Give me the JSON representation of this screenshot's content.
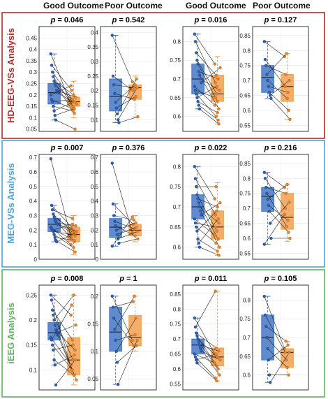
{
  "headers": [
    "Good Outcome",
    "Poor Outcome",
    "Good Outcome",
    "Poor Outcome"
  ],
  "colors": {
    "good": "#4477c6",
    "poor": "#f0a050",
    "row_hd": "#b52b2b",
    "row_meg": "#4aa3d9",
    "row_ieeg": "#5fb35f",
    "pair_line": "#222222"
  },
  "rows": [
    {
      "label": "HD-EEG-VSs Analysis",
      "color_key": "row_hd"
    },
    {
      "label": "MEG-VSs Analysis",
      "color_key": "row_meg"
    },
    {
      "label": "iEEG Analysis",
      "color_key": "row_ieeg"
    }
  ],
  "chart_data": [
    {
      "type": "box",
      "row": 0,
      "col": 0,
      "p_label": "p",
      "p_value": "= 0.046",
      "ylim": [
        0.04,
        0.5
      ],
      "yticks": [
        "0.45",
        "0.4",
        "0.35",
        "0.3",
        "0.25",
        "0.2",
        "0.15",
        "0.1",
        "0.05"
      ],
      "yvals": [
        0.45,
        0.4,
        0.35,
        0.3,
        0.25,
        0.2,
        0.15,
        0.1,
        0.05
      ],
      "boxes": [
        {
          "q1": 0.16,
          "median": 0.21,
          "q3": 0.25,
          "lo": 0.09,
          "hi": 0.38
        },
        {
          "q1": 0.15,
          "median": 0.17,
          "q3": 0.19,
          "lo": 0.1,
          "hi": 0.26
        }
      ],
      "pairs": [
        [
          0.38,
          0.16
        ],
        [
          0.33,
          0.22
        ],
        [
          0.3,
          0.18
        ],
        [
          0.28,
          0.15
        ],
        [
          0.26,
          0.2
        ],
        [
          0.25,
          0.12
        ],
        [
          0.24,
          0.17
        ],
        [
          0.22,
          0.19
        ],
        [
          0.21,
          0.16
        ],
        [
          0.2,
          0.24
        ],
        [
          0.18,
          0.14
        ],
        [
          0.17,
          0.18
        ],
        [
          0.15,
          0.13
        ],
        [
          0.13,
          0.17
        ],
        [
          0.11,
          0.14
        ],
        [
          0.09,
          0.05
        ]
      ]
    },
    {
      "type": "box",
      "row": 0,
      "col": 1,
      "p_label": "p",
      "p_value": "= 0.542",
      "ylim": [
        0.06,
        0.42
      ],
      "yticks": [
        "0.4",
        "0.35",
        "0.3",
        "0.25",
        "0.2",
        "0.15",
        "0.1"
      ],
      "yvals": [
        0.4,
        0.35,
        0.3,
        0.25,
        0.2,
        0.15,
        0.1
      ],
      "boxes": [
        {
          "q1": 0.13,
          "median": 0.18,
          "q3": 0.24,
          "lo": 0.09,
          "hi": 0.39
        },
        {
          "q1": 0.17,
          "median": 0.21,
          "q3": 0.22,
          "lo": 0.11,
          "hi": 0.25
        }
      ],
      "pairs": [
        [
          0.39,
          0.23
        ],
        [
          0.25,
          0.2
        ],
        [
          0.22,
          0.21
        ],
        [
          0.19,
          0.17
        ],
        [
          0.16,
          0.22
        ],
        [
          0.14,
          0.18
        ],
        [
          0.12,
          0.24
        ],
        [
          0.1,
          0.21
        ],
        [
          0.09,
          0.11
        ]
      ]
    },
    {
      "type": "box",
      "row": 0,
      "col": 2,
      "p_label": "p",
      "p_value": "= 0.016",
      "ylim": [
        0.56,
        0.84
      ],
      "yticks": [
        "0.8",
        "0.75",
        "0.7",
        "0.65",
        "0.6"
      ],
      "yvals": [
        0.8,
        0.75,
        0.7,
        0.65,
        0.6
      ],
      "boxes": [
        {
          "q1": 0.66,
          "median": 0.7,
          "q3": 0.74,
          "lo": 0.62,
          "hi": 0.82
        },
        {
          "q1": 0.64,
          "median": 0.66,
          "q3": 0.71,
          "lo": 0.58,
          "hi": 0.76
        }
      ],
      "pairs": [
        [
          0.82,
          0.74
        ],
        [
          0.8,
          0.69
        ],
        [
          0.77,
          0.71
        ],
        [
          0.75,
          0.66
        ],
        [
          0.74,
          0.64
        ],
        [
          0.72,
          0.7
        ],
        [
          0.71,
          0.62
        ],
        [
          0.7,
          0.67
        ],
        [
          0.69,
          0.73
        ],
        [
          0.68,
          0.63
        ],
        [
          0.67,
          0.65
        ],
        [
          0.66,
          0.6
        ],
        [
          0.65,
          0.68
        ],
        [
          0.64,
          0.61
        ],
        [
          0.63,
          0.59
        ],
        [
          0.62,
          0.58
        ]
      ]
    },
    {
      "type": "box",
      "row": 0,
      "col": 3,
      "p_label": "p",
      "p_value": "= 0.127",
      "ylim": [
        0.53,
        0.88
      ],
      "yticks": [
        "0.85",
        "0.8",
        "0.75",
        "0.7",
        "0.65",
        "0.6",
        "0.55"
      ],
      "yvals": [
        0.85,
        0.8,
        0.75,
        0.7,
        0.65,
        0.6,
        0.55
      ],
      "boxes": [
        {
          "q1": 0.66,
          "median": 0.71,
          "q3": 0.75,
          "lo": 0.64,
          "hi": 0.83
        },
        {
          "q1": 0.63,
          "median": 0.68,
          "q3": 0.72,
          "lo": 0.57,
          "hi": 0.79
        }
      ],
      "pairs": [
        [
          0.83,
          0.78
        ],
        [
          0.77,
          0.68
        ],
        [
          0.75,
          0.72
        ],
        [
          0.72,
          0.79
        ],
        [
          0.7,
          0.64
        ],
        [
          0.68,
          0.66
        ],
        [
          0.66,
          0.6
        ],
        [
          0.65,
          0.7
        ],
        [
          0.64,
          0.57
        ]
      ]
    },
    {
      "type": "box",
      "row": 1,
      "col": 0,
      "p_label": "p",
      "p_value": "= 0.007",
      "ylim": [
        0,
        0.72
      ],
      "yticks": [
        "0.7",
        "0.6",
        "0.5",
        "0.4",
        "0.3",
        "0.2",
        "0.1",
        "0"
      ],
      "yvals": [
        0.7,
        0.6,
        0.5,
        0.4,
        0.3,
        0.2,
        0.1,
        0
      ],
      "boxes": [
        {
          "q1": 0.19,
          "median": 0.24,
          "q3": 0.28,
          "lo": 0.12,
          "hi": 0.37
        },
        {
          "q1": 0.12,
          "median": 0.17,
          "q3": 0.22,
          "lo": 0.03,
          "hi": 0.3
        }
      ],
      "pairs": [
        [
          0.69,
          0.15
        ],
        [
          0.37,
          0.22
        ],
        [
          0.34,
          0.28
        ],
        [
          0.31,
          0.18
        ],
        [
          0.29,
          0.2
        ],
        [
          0.27,
          0.12
        ],
        [
          0.26,
          0.16
        ],
        [
          0.25,
          0.23
        ],
        [
          0.24,
          0.19
        ],
        [
          0.22,
          0.1
        ],
        [
          0.21,
          0.14
        ],
        [
          0.2,
          0.24
        ],
        [
          0.19,
          0.17
        ],
        [
          0.17,
          0.08
        ],
        [
          0.15,
          0.13
        ],
        [
          0.13,
          0.05
        ],
        [
          0.12,
          0.18
        ]
      ]
    },
    {
      "type": "box",
      "row": 1,
      "col": 1,
      "p_label": "p",
      "p_value": "= 0.376",
      "ylim": [
        0,
        0.72
      ],
      "yticks": [
        "0.7",
        "0.6",
        "0.5",
        "0.4",
        "0.3",
        "0.2",
        "0.1",
        "0"
      ],
      "yvals": [
        0.7,
        0.6,
        0.5,
        0.4,
        0.3,
        0.2,
        0.1,
        0
      ],
      "boxes": [
        {
          "q1": 0.15,
          "median": 0.22,
          "q3": 0.28,
          "lo": 0.09,
          "hi": 0.38
        },
        {
          "q1": 0.16,
          "median": 0.2,
          "q3": 0.24,
          "lo": 0.12,
          "hi": 0.3
        }
      ],
      "pairs": [
        [
          0.66,
          0.18
        ],
        [
          0.38,
          0.24
        ],
        [
          0.3,
          0.27
        ],
        [
          0.26,
          0.21
        ],
        [
          0.23,
          0.16
        ],
        [
          0.2,
          0.25
        ],
        [
          0.17,
          0.22
        ],
        [
          0.14,
          0.19
        ],
        [
          0.11,
          0.14
        ],
        [
          0.09,
          0.29
        ]
      ]
    },
    {
      "type": "box",
      "row": 1,
      "col": 2,
      "p_label": "p",
      "p_value": "= 0.022",
      "ylim": [
        0.57,
        0.83
      ],
      "yticks": [
        "0.8",
        "0.75",
        "0.7",
        "0.65",
        "0.6"
      ],
      "yvals": [
        0.8,
        0.75,
        0.7,
        0.65,
        0.6
      ],
      "boxes": [
        {
          "q1": 0.67,
          "median": 0.7,
          "q3": 0.73,
          "lo": 0.6,
          "hi": 0.8
        },
        {
          "q1": 0.62,
          "median": 0.65,
          "q3": 0.69,
          "lo": 0.58,
          "hi": 0.76
        }
      ],
      "pairs": [
        [
          0.8,
          0.72
        ],
        [
          0.77,
          0.68
        ],
        [
          0.75,
          0.75
        ],
        [
          0.73,
          0.64
        ],
        [
          0.72,
          0.7
        ],
        [
          0.71,
          0.62
        ],
        [
          0.7,
          0.66
        ],
        [
          0.69,
          0.6
        ],
        [
          0.68,
          0.71
        ],
        [
          0.67,
          0.63
        ],
        [
          0.66,
          0.65
        ],
        [
          0.65,
          0.61
        ],
        [
          0.64,
          0.69
        ],
        [
          0.62,
          0.59
        ],
        [
          0.61,
          0.67
        ],
        [
          0.6,
          0.58
        ]
      ]
    },
    {
      "type": "box",
      "row": 1,
      "col": 3,
      "p_label": "p",
      "p_value": "= 0.216",
      "ylim": [
        0.53,
        0.88
      ],
      "yticks": [
        "0.85",
        "0.8",
        "0.75",
        "0.7",
        "0.65",
        "0.6",
        "0.55"
      ],
      "yvals": [
        0.85,
        0.8,
        0.75,
        0.7,
        0.65,
        0.6,
        0.55
      ],
      "boxes": [
        {
          "q1": 0.69,
          "median": 0.74,
          "q3": 0.77,
          "lo": 0.58,
          "hi": 0.82
        },
        {
          "q1": 0.63,
          "median": 0.67,
          "q3": 0.75,
          "lo": 0.59,
          "hi": 0.78
        }
      ],
      "pairs": [
        [
          0.82,
          0.77
        ],
        [
          0.8,
          0.7
        ],
        [
          0.77,
          0.75
        ],
        [
          0.75,
          0.64
        ],
        [
          0.73,
          0.78
        ],
        [
          0.71,
          0.66
        ],
        [
          0.69,
          0.62
        ],
        [
          0.65,
          0.72
        ],
        [
          0.6,
          0.6
        ],
        [
          0.58,
          0.68
        ]
      ]
    },
    {
      "type": "box",
      "row": 2,
      "col": 0,
      "p_label": "p",
      "p_value": "= 0.008",
      "ylim": [
        0.06,
        0.27
      ],
      "yticks": [
        "0.25",
        "0.2",
        "0.15",
        "0.1"
      ],
      "yvals": [
        0.25,
        0.2,
        0.15,
        0.1
      ],
      "boxes": [
        {
          "q1": 0.16,
          "median": 0.175,
          "q3": 0.195,
          "lo": 0.11,
          "hi": 0.25
        },
        {
          "q1": 0.09,
          "median": 0.12,
          "q3": 0.165,
          "lo": 0.07,
          "hi": 0.25
        }
      ],
      "pairs": [
        [
          0.25,
          0.21
        ],
        [
          0.24,
          0.1
        ],
        [
          0.22,
          0.16
        ],
        [
          0.21,
          0.12
        ],
        [
          0.2,
          0.25
        ],
        [
          0.19,
          0.09
        ],
        [
          0.18,
          0.14
        ],
        [
          0.175,
          0.19
        ],
        [
          0.17,
          0.08
        ],
        [
          0.165,
          0.11
        ],
        [
          0.16,
          0.23
        ],
        [
          0.15,
          0.1
        ],
        [
          0.14,
          0.15
        ],
        [
          0.12,
          0.09
        ],
        [
          0.11,
          0.13
        ],
        [
          0.07,
          0.12
        ]
      ]
    },
    {
      "type": "box",
      "row": 2,
      "col": 1,
      "p_label": "p",
      "p_value": "= 1",
      "ylim": [
        0.03,
        0.22
      ],
      "yticks": [
        "0.2",
        "0.15",
        "0.1",
        "0.05"
      ],
      "yvals": [
        0.2,
        0.15,
        0.1,
        0.05
      ],
      "boxes": [
        {
          "q1": 0.1,
          "median": 0.135,
          "q3": 0.18,
          "lo": 0.04,
          "hi": 0.2
        },
        {
          "q1": 0.11,
          "median": 0.125,
          "q3": 0.165,
          "lo": 0.1,
          "hi": 0.2
        }
      ],
      "pairs": [
        [
          0.2,
          0.12
        ],
        [
          0.18,
          0.19
        ],
        [
          0.16,
          0.11
        ],
        [
          0.14,
          0.2
        ],
        [
          0.12,
          0.13
        ],
        [
          0.1,
          0.16
        ],
        [
          0.08,
          0.11
        ],
        [
          0.04,
          0.12
        ]
      ]
    },
    {
      "type": "box",
      "row": 2,
      "col": 2,
      "p_label": "p",
      "p_value": "= 0.011",
      "ylim": [
        0.53,
        0.88
      ],
      "yticks": [
        "0.85",
        "0.8",
        "0.75",
        "0.7",
        "0.65",
        "0.6",
        "0.55"
      ],
      "yvals": [
        0.85,
        0.8,
        0.75,
        0.7,
        0.65,
        0.6,
        0.55
      ],
      "boxes": [
        {
          "q1": 0.65,
          "median": 0.68,
          "q3": 0.7,
          "lo": 0.62,
          "hi": 0.77
        },
        {
          "q1": 0.61,
          "median": 0.64,
          "q3": 0.67,
          "lo": 0.56,
          "hi": 0.86
        }
      ],
      "pairs": [
        [
          0.77,
          0.65
        ],
        [
          0.74,
          0.86
        ],
        [
          0.72,
          0.67
        ],
        [
          0.71,
          0.61
        ],
        [
          0.7,
          0.64
        ],
        [
          0.69,
          0.6
        ],
        [
          0.68,
          0.66
        ],
        [
          0.67,
          0.58
        ],
        [
          0.66,
          0.63
        ],
        [
          0.65,
          0.62
        ],
        [
          0.64,
          0.57
        ],
        [
          0.63,
          0.65
        ],
        [
          0.62,
          0.56
        ]
      ]
    },
    {
      "type": "box",
      "row": 2,
      "col": 3,
      "p_label": "p",
      "p_value": "= 0.105",
      "ylim": [
        0.56,
        0.84
      ],
      "yticks": [
        "0.8",
        "0.75",
        "0.7",
        "0.65",
        "0.6"
      ],
      "yvals": [
        0.8,
        0.75,
        0.7,
        0.65,
        0.6
      ],
      "boxes": [
        {
          "q1": 0.64,
          "median": 0.7,
          "q3": 0.76,
          "lo": 0.58,
          "hi": 0.81
        },
        {
          "q1": 0.62,
          "median": 0.66,
          "q3": 0.67,
          "lo": 0.6,
          "hi": 0.69
        }
      ],
      "pairs": [
        [
          0.81,
          0.67
        ],
        [
          0.76,
          0.66
        ],
        [
          0.73,
          0.69
        ],
        [
          0.7,
          0.64
        ],
        [
          0.67,
          0.62
        ],
        [
          0.64,
          0.68
        ],
        [
          0.6,
          0.6
        ],
        [
          0.58,
          0.66
        ]
      ]
    }
  ]
}
